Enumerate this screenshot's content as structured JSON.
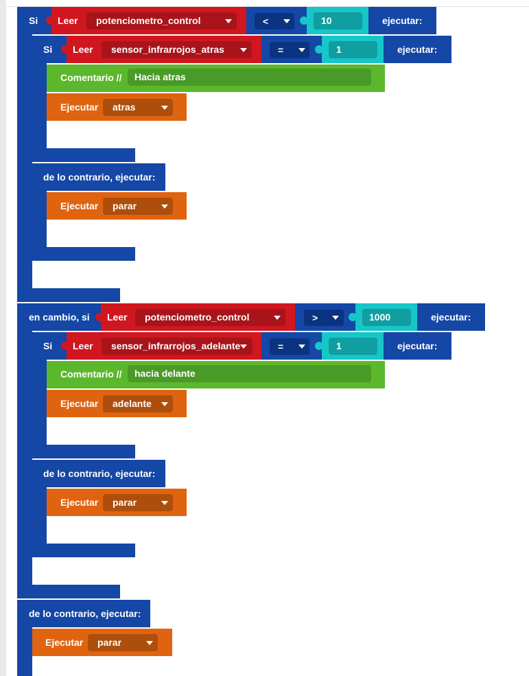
{
  "labels": {
    "si": "Si",
    "leer": "Leer",
    "ejecutar_colon": "ejecutar:",
    "en_cambio_si": "en cambio, si",
    "else_execute": "de lo contrario, ejecutar:",
    "comentario": "Comentario //",
    "ejecutar": "Ejecutar"
  },
  "blocks": {
    "if1": {
      "variable": "potenciometro_control",
      "operator": "<",
      "value": "10",
      "inner_if": {
        "variable": "sensor_infrarrojos_atras",
        "operator": "=",
        "value": "1",
        "comment": "Hacia atras",
        "action": "atras",
        "else_action": "parar"
      }
    },
    "elseif1": {
      "variable": "potenciometro_control",
      "operator": ">",
      "value": "1000",
      "inner_if": {
        "variable": "sensor_infrarrojos_adelante",
        "operator": "=",
        "value": "1",
        "comment": "hacia delante",
        "action": "adelante",
        "else_action": "parar"
      }
    },
    "else_action": "parar"
  },
  "colors": {
    "control_blue": "#1447a6",
    "read_red": "#d0171f",
    "comment_green": "#5bb82c",
    "execute_orange": "#e06410",
    "number_cyan": "#16c6c9"
  }
}
